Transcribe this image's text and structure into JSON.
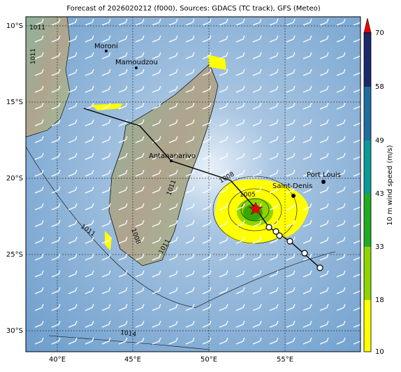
{
  "title": "Forecast of 2026020212 (f000), Sources: GDACS (TC track), GFS (Meteo)",
  "map": {
    "lon_labels": [
      "40°E",
      "45°E",
      "50°E",
      "55°E"
    ],
    "lat_labels": [
      "10°S",
      "15°S",
      "20°S",
      "25°S",
      "30°S"
    ],
    "places": [
      "Moroni",
      "Mamoudzou",
      "Antananarivo",
      "Saint-Denis",
      "Port Louis"
    ],
    "isobars": [
      "1011",
      "1011",
      "1008",
      "1005",
      "1011",
      "1011",
      "1008",
      "1011",
      "1014"
    ]
  },
  "colorbar": {
    "label": "10 m wind speed (m/s)",
    "ticks": [
      "10",
      "18",
      "33",
      "43",
      "49",
      "58",
      "70"
    ]
  }
}
